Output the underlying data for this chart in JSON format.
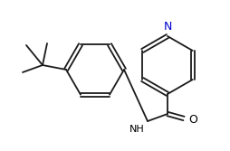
{
  "bg_color": "#ffffff",
  "line_color": "#1a1a1a",
  "atom_color_N": "#0000cd",
  "atom_color_O": "#000000",
  "atom_label_N": "N",
  "atom_label_O": "O",
  "atom_label_NH": "NH",
  "figsize": [
    2.54,
    1.67
  ],
  "dpi": 100
}
